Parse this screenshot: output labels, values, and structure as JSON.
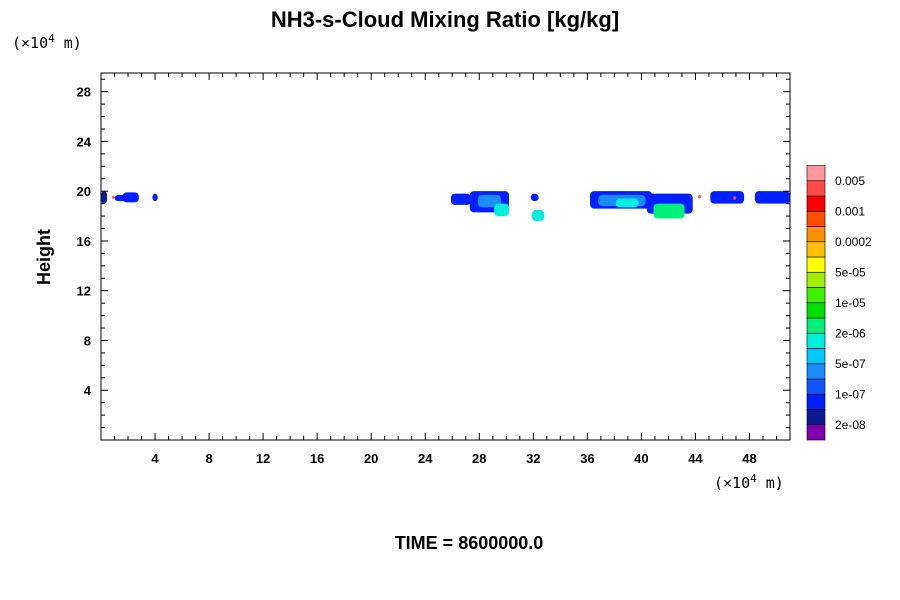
{
  "chart_data": {
    "type": "heatmap",
    "title": "NH3-s-Cloud Mixing Ratio [kg/kg]",
    "ylabel": "Height",
    "xlabel": "",
    "x_unit_prefix": "(×10",
    "x_unit_exp": "4",
    "x_unit_suffix": " m)",
    "y_unit_prefix": "(×10",
    "y_unit_exp": "4",
    "y_unit_suffix": " m)",
    "xlim": [
      0,
      51
    ],
    "ylim": [
      0,
      29.5
    ],
    "x_ticks": [
      4,
      8,
      12,
      16,
      20,
      24,
      28,
      32,
      36,
      40,
      44,
      48
    ],
    "y_ticks": [
      4,
      8,
      12,
      16,
      20,
      24,
      28
    ],
    "colorbar": {
      "colors": [
        "#8000b0",
        "#0a1a90",
        "#0020ff",
        "#1055ff",
        "#1a8cff",
        "#00c8ff",
        "#00eedd",
        "#00f07a",
        "#00e000",
        "#40f000",
        "#a0f000",
        "#ffff00",
        "#ffc000",
        "#ff9000",
        "#ff5000",
        "#ff0000",
        "#ff4a4a",
        "#ff9999"
      ],
      "labels": [
        {
          "text": "2e-08",
          "at_boundary": 1
        },
        {
          "text": "1e-07",
          "at_boundary": 3
        },
        {
          "text": "5e-07",
          "at_boundary": 5
        },
        {
          "text": "2e-06",
          "at_boundary": 7
        },
        {
          "text": "1e-05",
          "at_boundary": 9
        },
        {
          "text": "5e-05",
          "at_boundary": 11
        },
        {
          "text": "0.0002",
          "at_boundary": 13
        },
        {
          "text": "0.001",
          "at_boundary": 15
        },
        {
          "text": "0.005",
          "at_boundary": 17
        }
      ]
    },
    "cloud_patches": [
      {
        "x": [
          0,
          0.45
        ],
        "y": [
          19.0,
          20.0
        ],
        "level": 1
      },
      {
        "x": [
          1.0,
          2.0
        ],
        "y": [
          19.2,
          19.7
        ],
        "level": 2
      },
      {
        "x": [
          1.6,
          2.8
        ],
        "y": [
          19.1,
          19.9
        ],
        "level": 2
      },
      {
        "x": [
          3.8,
          4.2
        ],
        "y": [
          19.2,
          19.8
        ],
        "level": 2
      },
      {
        "x": [
          25.9,
          27.4
        ],
        "y": [
          18.9,
          19.8
        ],
        "level": 2
      },
      {
        "x": [
          27.3,
          30.2
        ],
        "y": [
          18.3,
          20.0
        ],
        "level": 2
      },
      {
        "x": [
          27.9,
          29.6
        ],
        "y": [
          18.7,
          19.7
        ],
        "level": 4
      },
      {
        "x": [
          29.1,
          30.2
        ],
        "y": [
          18.0,
          19.0
        ],
        "level": 6
      },
      {
        "x": [
          31.8,
          32.4
        ],
        "y": [
          19.2,
          19.8
        ],
        "level": 2
      },
      {
        "x": [
          31.9,
          32.8
        ],
        "y": [
          17.6,
          18.5
        ],
        "level": 6
      },
      {
        "x": [
          36.2,
          40.8
        ],
        "y": [
          18.6,
          20.0
        ],
        "level": 2
      },
      {
        "x": [
          36.8,
          40.3
        ],
        "y": [
          18.8,
          19.7
        ],
        "level": 4
      },
      {
        "x": [
          38.1,
          39.8
        ],
        "y": [
          18.7,
          19.4
        ],
        "level": 6
      },
      {
        "x": [
          40.4,
          43.8
        ],
        "y": [
          18.2,
          19.8
        ],
        "level": 2
      },
      {
        "x": [
          40.9,
          43.2
        ],
        "y": [
          17.8,
          19.0
        ],
        "level": 7
      },
      {
        "x": [
          45.1,
          47.6
        ],
        "y": [
          19.0,
          20.0
        ],
        "level": 2
      },
      {
        "x": [
          48.4,
          51
        ],
        "y": [
          19.0,
          20.0
        ],
        "level": 2
      },
      {
        "x": [
          44.2,
          44.4
        ],
        "y": [
          19.4,
          19.7
        ],
        "level": 16
      },
      {
        "x": [
          46.8,
          47.0
        ],
        "y": [
          19.3,
          19.6
        ],
        "level": 16
      },
      {
        "x": [
          0.8,
          1.0
        ],
        "y": [
          19.4,
          19.6
        ],
        "level": 16
      }
    ]
  },
  "footer": {
    "time_label": "TIME = 8600000.0"
  }
}
